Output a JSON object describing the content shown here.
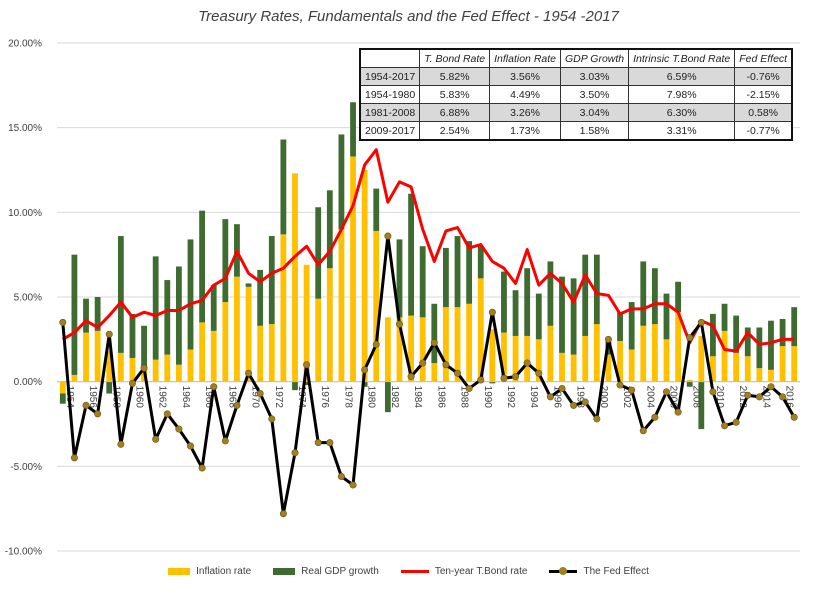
{
  "title": "Treasury Rates, Fundamentals and the Fed Effect - 1954 -2017",
  "colors": {
    "inflation": "#ffc000",
    "gdp": "#3e6b2f",
    "tbond": "#ff0000",
    "fed": "#000000",
    "fed_marker": "#a08020"
  },
  "table": {
    "headers": [
      "",
      "T. Bond Rate",
      "Inflation Rate",
      "GDP Growth",
      "Intrinsic T.Bond Rate",
      "Fed Effect"
    ],
    "rows": [
      [
        "1954-2017",
        "5.82%",
        "3.56%",
        "3.03%",
        "6.59%",
        "-0.76%"
      ],
      [
        "1954-1980",
        "5.83%",
        "4.49%",
        "3.50%",
        "7.98%",
        "-2.15%"
      ],
      [
        "1981-2008",
        "6.88%",
        "3.26%",
        "3.04%",
        "6.30%",
        "0.58%"
      ],
      [
        "2009-2017",
        "2.54%",
        "1.73%",
        "1.58%",
        "3.31%",
        "-0.77%"
      ]
    ]
  },
  "chart_data": {
    "type": "bar",
    "title": "Treasury Rates, Fundamentals and the Fed Effect - 1954 -2017",
    "x": [
      1954,
      1955,
      1956,
      1957,
      1958,
      1959,
      1960,
      1961,
      1962,
      1963,
      1964,
      1965,
      1966,
      1967,
      1968,
      1969,
      1970,
      1971,
      1972,
      1973,
      1974,
      1975,
      1976,
      1977,
      1978,
      1979,
      1980,
      1981,
      1982,
      1983,
      1984,
      1985,
      1986,
      1987,
      1988,
      1989,
      1990,
      1991,
      1992,
      1993,
      1994,
      1995,
      1996,
      1997,
      1998,
      1999,
      2000,
      2001,
      2002,
      2003,
      2004,
      2005,
      2006,
      2007,
      2008,
      2009,
      2010,
      2011,
      2012,
      2013,
      2014,
      2015,
      2016,
      2017
    ],
    "x_tick_labels": [
      "1954",
      "1956",
      "1958",
      "1960",
      "1962",
      "1964",
      "1966",
      "1968",
      "1970",
      "1972",
      "1974",
      "1976",
      "1978",
      "1980",
      "1982",
      "1984",
      "1986",
      "1988",
      "1990",
      "1992",
      "1994",
      "1996",
      "1998",
      "2000",
      "2002",
      "2004",
      "2006",
      "2008",
      "2010",
      "2012",
      "2014",
      "2016"
    ],
    "ylim": [
      -10,
      20
    ],
    "y_ticks": [
      "-10.00%",
      "-5.00%",
      "0.00%",
      "5.00%",
      "10.00%",
      "15.00%",
      "20.00%"
    ],
    "series": [
      {
        "name": "Inflation rate",
        "kind": "stacked-bar",
        "values": [
          -0.7,
          0.4,
          2.9,
          3.0,
          1.8,
          1.7,
          1.4,
          0.7,
          1.3,
          1.6,
          1.0,
          1.9,
          3.5,
          3.0,
          4.7,
          6.2,
          5.6,
          3.3,
          3.4,
          8.7,
          12.3,
          6.9,
          4.9,
          6.7,
          9.0,
          13.3,
          12.5,
          8.9,
          3.8,
          3.8,
          3.9,
          3.8,
          1.1,
          4.4,
          4.4,
          4.6,
          6.1,
          3.1,
          2.9,
          2.7,
          2.7,
          2.5,
          3.3,
          1.7,
          1.6,
          2.7,
          3.4,
          1.6,
          2.4,
          1.9,
          3.3,
          3.4,
          2.5,
          4.1,
          0.1,
          2.7,
          1.5,
          3.0,
          1.7,
          1.5,
          0.8,
          0.7,
          2.1,
          2.1
        ]
      },
      {
        "name": "Real GDP growth",
        "kind": "stacked-bar",
        "values": [
          -0.6,
          7.1,
          2.0,
          2.0,
          -0.7,
          6.9,
          2.6,
          2.6,
          6.1,
          4.4,
          5.8,
          6.5,
          6.6,
          2.7,
          4.9,
          3.1,
          0.2,
          3.3,
          5.2,
          5.6,
          -0.5,
          -0.2,
          5.4,
          4.6,
          5.6,
          3.2,
          -0.3,
          2.5,
          -1.8,
          4.6,
          7.2,
          4.2,
          3.5,
          3.5,
          4.2,
          3.7,
          1.9,
          -0.1,
          3.6,
          2.7,
          4.0,
          2.7,
          3.8,
          4.5,
          4.5,
          4.8,
          4.1,
          1.0,
          1.7,
          2.8,
          3.8,
          3.3,
          2.7,
          1.8,
          -0.3,
          -2.8,
          2.5,
          1.6,
          2.2,
          1.7,
          2.4,
          2.9,
          1.6,
          2.3
        ]
      },
      {
        "name": "Ten-year T.Bond rate",
        "kind": "line",
        "values": [
          2.5,
          2.9,
          3.6,
          3.2,
          3.9,
          4.7,
          3.8,
          4.1,
          3.9,
          4.2,
          4.2,
          4.6,
          4.8,
          5.7,
          6.1,
          7.7,
          6.4,
          5.9,
          6.4,
          6.7,
          7.4,
          8.0,
          6.9,
          7.7,
          9.0,
          10.4,
          12.8,
          13.7,
          10.6,
          11.8,
          11.5,
          9.0,
          7.1,
          8.9,
          9.1,
          7.9,
          8.1,
          7.1,
          6.7,
          5.8,
          7.8,
          5.7,
          6.4,
          5.8,
          4.7,
          6.3,
          5.2,
          5.1,
          4.0,
          4.3,
          4.3,
          4.6,
          4.6,
          4.1,
          2.3,
          3.6,
          3.3,
          1.9,
          1.8,
          2.9,
          2.2,
          2.3,
          2.5,
          2.5
        ]
      },
      {
        "name": "The Fed Effect",
        "kind": "line-marker",
        "values": [
          3.5,
          -4.5,
          -1.4,
          -1.9,
          2.8,
          -3.7,
          -0.1,
          0.8,
          -3.4,
          -1.9,
          -2.8,
          -3.8,
          -5.1,
          -0.3,
          -3.5,
          -1.4,
          0.5,
          -0.7,
          -2.2,
          -7.8,
          -4.2,
          1.0,
          -3.6,
          -3.6,
          -5.6,
          -6.1,
          0.7,
          2.2,
          8.6,
          3.4,
          0.3,
          1.1,
          2.3,
          1.0,
          0.5,
          -0.4,
          0.1,
          4.1,
          0.2,
          0.3,
          1.1,
          0.5,
          -0.9,
          -0.4,
          -1.4,
          -1.2,
          -2.2,
          2.5,
          -0.2,
          -0.5,
          -2.9,
          -2.1,
          -0.6,
          -1.8,
          2.6,
          3.5,
          -0.6,
          -2.6,
          -2.4,
          -0.8,
          -0.9,
          -0.3,
          -0.9,
          -2.1
        ]
      }
    ],
    "legend_position": "bottom"
  }
}
